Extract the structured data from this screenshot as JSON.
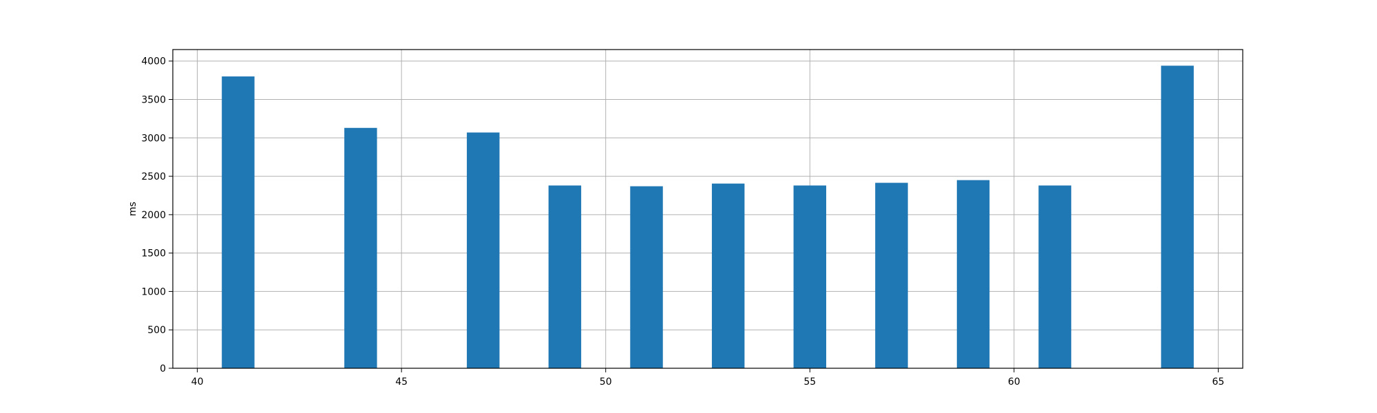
{
  "chart_data": {
    "type": "bar",
    "title": "",
    "xlabel": "",
    "ylabel": "ms",
    "xlim": [
      39.4,
      65.6
    ],
    "ylim": [
      0,
      4150
    ],
    "xticks": [
      40,
      45,
      50,
      55,
      60,
      65
    ],
    "yticks": [
      0,
      500,
      1000,
      1500,
      2000,
      2500,
      3000,
      3500,
      4000
    ],
    "grid": true,
    "bar_width": 0.8,
    "bar_color": "#1f77b4",
    "series": [
      {
        "x": [
          41,
          44,
          47,
          49,
          51,
          53,
          55,
          57,
          59,
          61,
          64
        ],
        "values": [
          3800,
          3130,
          3070,
          2380,
          2370,
          2405,
          2380,
          2415,
          2450,
          2380,
          3940
        ]
      }
    ]
  }
}
